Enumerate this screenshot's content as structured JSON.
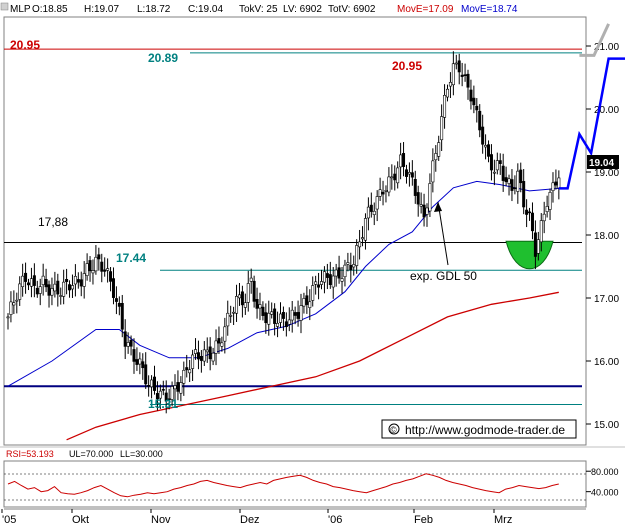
{
  "header": {
    "symbol": "MLP",
    "o": "O:18.85",
    "h": "H:19.07",
    "l": "L:18.72",
    "c": "C:19.04",
    "tokv": "TokV: 25",
    "lv": "LV: 6902",
    "totv": "TotV: 6902",
    "move_red": "MovE=17.09",
    "move_blue": "MovE=18.74"
  },
  "colors": {
    "up": "#ffffff",
    "down": "#000000",
    "ema_fast": "#0000cc",
    "ema_slow": "#cc0000",
    "support": "#000080",
    "teal": "#008080",
    "red_label": "#cc0000",
    "green_fill": "#1fbf2f",
    "projection": "#0000ff"
  },
  "chart_data": [
    {
      "type": "candlestick",
      "title": "",
      "ylim": [
        14.75,
        21.35
      ],
      "y_ticks": [
        "15.00",
        "16.00",
        "17.00",
        "18.00",
        "19.00",
        "20.00",
        "21.00"
      ],
      "x_labels": [
        "'05",
        "Okt",
        "Nov",
        "Dez",
        "'06",
        "Feb",
        "Mrz"
      ],
      "last_price": "19.04",
      "annotations": {
        "high_left": "20.95",
        "high_mid": "20.89",
        "high_right": "20.95",
        "resistance": "17,88",
        "level_1744": "17.44",
        "level_1531": "15.31",
        "arrow_label": "exp. GDL 50",
        "source": "http://www.godmode-trader.de",
        "copyright": "©"
      },
      "levels": [
        {
          "name": "red-line-20-95",
          "value": 20.95,
          "color": "#cc0000"
        },
        {
          "name": "teal-line-20-89",
          "value": 20.89,
          "color": "#008080"
        },
        {
          "name": "resistance-17-88",
          "value": 17.88,
          "color": "#000000"
        },
        {
          "name": "teal-line-17-44",
          "value": 17.44,
          "color": "#008080"
        },
        {
          "name": "support-15-6",
          "value": 15.6,
          "color": "#000080"
        },
        {
          "name": "teal-line-15-31",
          "value": 15.31,
          "color": "#008080"
        }
      ],
      "ohlc_anchors": [
        [
          0,
          16.7
        ],
        [
          3,
          17.0
        ],
        [
          6,
          17.3
        ],
        [
          9,
          17.2
        ],
        [
          12,
          17.3
        ],
        [
          15,
          17.1
        ],
        [
          18,
          17.05
        ],
        [
          21,
          17.2
        ],
        [
          24,
          17.3
        ],
        [
          27,
          17.5
        ],
        [
          30,
          17.55
        ],
        [
          33,
          17.4
        ],
        [
          36,
          17.1
        ],
        [
          38,
          16.8
        ],
        [
          40,
          16.4
        ],
        [
          43,
          16.1
        ],
        [
          46,
          15.8
        ],
        [
          48,
          15.55
        ],
        [
          51,
          15.5
        ],
        [
          54,
          15.5
        ],
        [
          57,
          15.6
        ],
        [
          60,
          15.7
        ],
        [
          63,
          16.0
        ],
        [
          66,
          16.1
        ],
        [
          69,
          16.2
        ],
        [
          72,
          16.3
        ],
        [
          75,
          16.6
        ],
        [
          78,
          16.9
        ],
        [
          81,
          17.0
        ],
        [
          83,
          17.35
        ],
        [
          85,
          16.9
        ],
        [
          88,
          16.7
        ],
        [
          91,
          16.6
        ],
        [
          94,
          16.6
        ],
        [
          97,
          16.75
        ],
        [
          100,
          16.9
        ],
        [
          103,
          17.0
        ],
        [
          106,
          17.2
        ],
        [
          109,
          17.3
        ],
        [
          112,
          17.4
        ],
        [
          115,
          17.5
        ],
        [
          118,
          17.55
        ],
        [
          120,
          17.8
        ],
        [
          122,
          18.2
        ],
        [
          125,
          18.5
        ],
        [
          128,
          18.8
        ],
        [
          131,
          18.9
        ],
        [
          134,
          19.1
        ],
        [
          137,
          18.9
        ],
        [
          140,
          18.6
        ],
        [
          142,
          18.3
        ],
        [
          144,
          18.9
        ],
        [
          146,
          19.3
        ],
        [
          148,
          19.8
        ],
        [
          150,
          20.3
        ],
        [
          152,
          20.6
        ],
        [
          154,
          20.7
        ],
        [
          156,
          20.5
        ],
        [
          158,
          20.3
        ],
        [
          160,
          19.9
        ],
        [
          162,
          19.5
        ],
        [
          164,
          19.1
        ],
        [
          166,
          19.0
        ],
        [
          168,
          19.1
        ],
        [
          170,
          18.9
        ],
        [
          172,
          18.8
        ],
        [
          174,
          19.0
        ],
        [
          176,
          18.5
        ],
        [
          178,
          18.2
        ],
        [
          180,
          17.7
        ],
        [
          182,
          18.1
        ],
        [
          184,
          18.6
        ],
        [
          186,
          18.8
        ],
        [
          188,
          19.04
        ]
      ],
      "ema_fast": [
        [
          0,
          15.6
        ],
        [
          15,
          16.0
        ],
        [
          30,
          16.5
        ],
        [
          38,
          16.5
        ],
        [
          45,
          16.25
        ],
        [
          55,
          16.05
        ],
        [
          65,
          16.05
        ],
        [
          75,
          16.2
        ],
        [
          85,
          16.45
        ],
        [
          95,
          16.55
        ],
        [
          105,
          16.75
        ],
        [
          115,
          17.1
        ],
        [
          122,
          17.5
        ],
        [
          130,
          17.85
        ],
        [
          138,
          18.05
        ],
        [
          145,
          18.45
        ],
        [
          152,
          18.75
        ],
        [
          160,
          18.85
        ],
        [
          168,
          18.8
        ],
        [
          178,
          18.7
        ],
        [
          188,
          18.74
        ]
      ],
      "ema_slow": [
        [
          20,
          14.75
        ],
        [
          30,
          14.95
        ],
        [
          45,
          15.15
        ],
        [
          60,
          15.3
        ],
        [
          75,
          15.45
        ],
        [
          90,
          15.6
        ],
        [
          105,
          15.75
        ],
        [
          120,
          16.0
        ],
        [
          135,
          16.35
        ],
        [
          150,
          16.7
        ],
        [
          165,
          16.9
        ],
        [
          178,
          17.0
        ],
        [
          188,
          17.09
        ]
      ],
      "projection": [
        [
          188,
          18.74
        ],
        [
          191,
          18.74
        ],
        [
          195,
          19.6
        ],
        [
          199,
          19.3
        ],
        [
          205,
          20.8
        ],
        [
          212,
          20.8
        ]
      ],
      "projection_grey": [
        [
          195,
          20.85
        ],
        [
          200,
          20.85
        ],
        [
          205,
          21.35
        ]
      ],
      "green_cup": {
        "x_center": 178,
        "half_width": 8,
        "top": 17.9,
        "bottom": 17.35
      }
    },
    {
      "type": "line",
      "title": "",
      "label": "RSI=53.193",
      "ul_label": "UL=70.000",
      "ll_label": "LL=30.000",
      "ylim": [
        10,
        100
      ],
      "y_ticks": [
        "80.000",
        "40.000"
      ],
      "series": [
        {
          "values": [
            55,
            60,
            52,
            45,
            48,
            40,
            42,
            50,
            38,
            36,
            35,
            38,
            42,
            48,
            52,
            45,
            38,
            32,
            30,
            33,
            35,
            38,
            36,
            38,
            40,
            45,
            48,
            52,
            55,
            60,
            62,
            58,
            55,
            52,
            50,
            48,
            52,
            55,
            58,
            55,
            62,
            65,
            68,
            70,
            72,
            68,
            62,
            58,
            55,
            50,
            48,
            45,
            42,
            40,
            38,
            42,
            46,
            50,
            55,
            58,
            62,
            65,
            70,
            75,
            72,
            68,
            62,
            58,
            55,
            52,
            48,
            45,
            42,
            40,
            38,
            45,
            48,
            52,
            50,
            48,
            46,
            48,
            52,
            55
          ]
        }
      ]
    }
  ]
}
